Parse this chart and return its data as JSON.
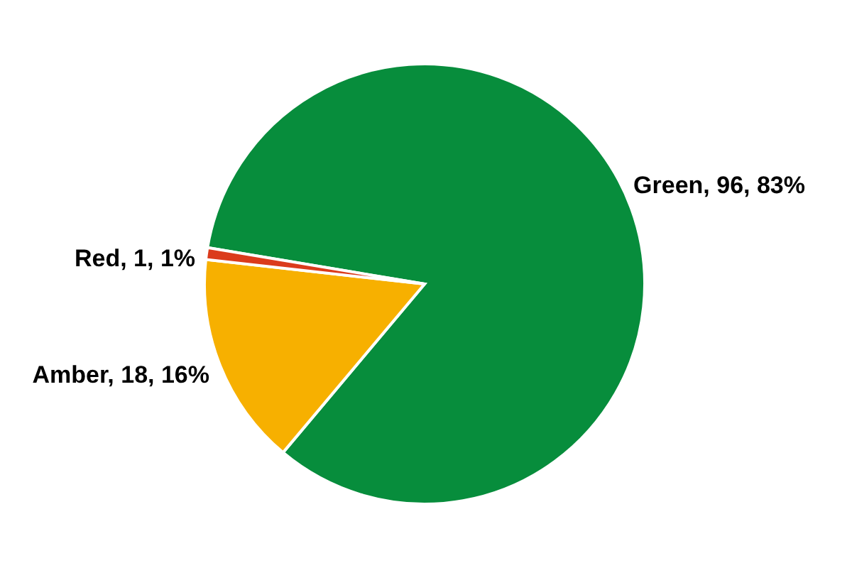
{
  "chart_data": {
    "type": "pie",
    "categories": [
      "Green",
      "Amber",
      "Red"
    ],
    "values": [
      96,
      18,
      1
    ],
    "colors": [
      "#078d3c",
      "#f7b000",
      "#db3b1c"
    ],
    "value_labels": [
      "96, 83%",
      "18, 16%",
      "1, 1%"
    ]
  }
}
